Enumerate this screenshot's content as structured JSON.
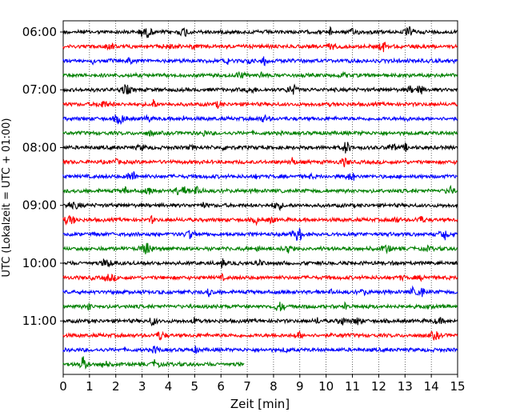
{
  "chart_data": {
    "type": "line",
    "title": "",
    "xlabel": "Zeit  [min]",
    "ylabel": "UTC (Lokalzeit = UTC + 01:00)",
    "xlim": [
      0,
      15
    ],
    "x_ticks": [
      "0",
      "1",
      "2",
      "3",
      "4",
      "5",
      "6",
      "7",
      "8",
      "9",
      "10",
      "11",
      "12",
      "13",
      "14",
      "15"
    ],
    "y_tick_labels": [
      "06:00",
      "07:00",
      "08:00",
      "09:00",
      "10:00",
      "11:00"
    ],
    "grid": "vertical dotted at each minute",
    "trace_colors": [
      "#000000",
      "#ff0000",
      "#0000ff",
      "#008000"
    ],
    "traces": [
      {
        "start": "06:00",
        "end_min": 15
      },
      {
        "start": "06:15",
        "end_min": 15
      },
      {
        "start": "06:30",
        "end_min": 15
      },
      {
        "start": "06:45",
        "end_min": 15
      },
      {
        "start": "07:00",
        "end_min": 15
      },
      {
        "start": "07:15",
        "end_min": 15
      },
      {
        "start": "07:30",
        "end_min": 15
      },
      {
        "start": "07:45",
        "end_min": 15
      },
      {
        "start": "08:00",
        "end_min": 15
      },
      {
        "start": "08:15",
        "end_min": 15
      },
      {
        "start": "08:30",
        "end_min": 15
      },
      {
        "start": "08:45",
        "end_min": 15
      },
      {
        "start": "09:00",
        "end_min": 15
      },
      {
        "start": "09:15",
        "end_min": 15
      },
      {
        "start": "09:30",
        "end_min": 15
      },
      {
        "start": "09:45",
        "end_min": 15
      },
      {
        "start": "10:00",
        "end_min": 15
      },
      {
        "start": "10:15",
        "end_min": 15
      },
      {
        "start": "10:30",
        "end_min": 15
      },
      {
        "start": "10:45",
        "end_min": 15
      },
      {
        "start": "11:00",
        "end_min": 15
      },
      {
        "start": "11:15",
        "end_min": 15
      },
      {
        "start": "11:30",
        "end_min": 15
      },
      {
        "start": "11:45",
        "end_min": 6.9
      }
    ]
  }
}
